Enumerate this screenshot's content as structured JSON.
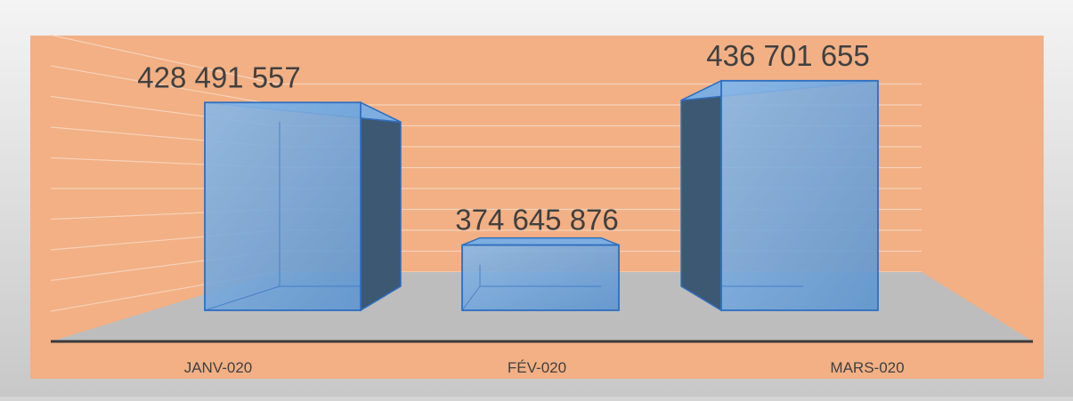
{
  "chart_data": {
    "type": "bar",
    "categories": [
      "JANV-020",
      "FÉV-020",
      "MARS-020"
    ],
    "values": [
      428491557,
      374645876,
      436701655
    ],
    "data_labels": [
      "428 491 557",
      "374 645 876",
      "436 701 655"
    ],
    "title": "",
    "xlabel": "",
    "ylabel": "",
    "ylim": [
      350000000,
      440000000
    ],
    "grid": true,
    "legend": "none",
    "style": "3d-perspective-column"
  },
  "colors": {
    "frame": "#d4d4d4",
    "plot_background": "#f2b084",
    "floor": "#bdbdbd",
    "bar_front": "#6fa2d6",
    "bar_edge": "#2f6fc0",
    "bar_side": "#3d5872",
    "axis_line": "#3a3a3a",
    "gridline": "#f6d2ba",
    "label_text": "#404040"
  }
}
